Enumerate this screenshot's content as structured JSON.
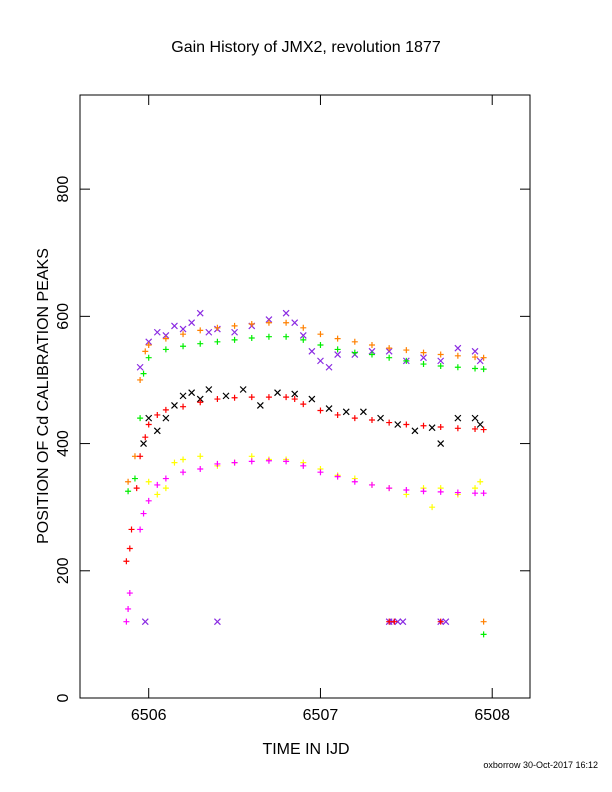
{
  "chart_data": {
    "type": "scatter",
    "title": "Gain History of JMX2, revolution 1877",
    "xlabel": "TIME IN IJD",
    "ylabel": "POSITION OF Cd CALIBRATION PEAKS",
    "footer": "oxborrow 30-Oct-2017 16:12",
    "xlim": [
      6505.6,
      6508.22
    ],
    "ylim": [
      0,
      948
    ],
    "xticks": [
      6506,
      6507,
      6508
    ],
    "yticks": [
      0,
      200,
      400,
      600,
      800
    ],
    "grid": false,
    "series": [
      {
        "color": "#ffff00",
        "marker": "+",
        "x": [
          6506.0,
          6506.05,
          6506.1,
          6506.15,
          6506.2,
          6506.3,
          6506.4,
          6506.5,
          6506.6,
          6506.7,
          6506.8,
          6506.9,
          6507.0,
          6507.1,
          6507.2,
          6507.3,
          6507.4,
          6507.5,
          6507.6,
          6507.65,
          6507.7,
          6507.8,
          6507.9,
          6507.93
        ],
        "values": [
          340,
          320,
          330,
          370,
          375,
          380,
          365,
          370,
          380,
          375,
          375,
          370,
          360,
          350,
          345,
          335,
          330,
          320,
          330,
          300,
          330,
          320,
          330,
          340
        ]
      },
      {
        "color": "#000000",
        "marker": "x",
        "x": [
          6505.97,
          6506.0,
          6506.05,
          6506.1,
          6506.15,
          6506.2,
          6506.25,
          6506.3,
          6506.35,
          6506.45,
          6506.55,
          6506.65,
          6506.75,
          6506.85,
          6506.95,
          6507.05,
          6507.15,
          6507.25,
          6507.35,
          6507.45,
          6507.55,
          6507.65,
          6507.7,
          6507.8,
          6507.9,
          6507.93
        ],
        "values": [
          400,
          440,
          420,
          440,
          460,
          475,
          480,
          470,
          485,
          475,
          485,
          460,
          480,
          478,
          470,
          455,
          450,
          450,
          440,
          430,
          420,
          425,
          400,
          440,
          440,
          430
        ]
      },
      {
        "color": "#8a2be2",
        "marker": "x",
        "x": [
          6505.95,
          6506.0,
          6506.05,
          6506.1,
          6506.15,
          6506.2,
          6506.25,
          6506.3,
          6506.35,
          6506.4,
          6506.5,
          6506.6,
          6506.7,
          6506.8,
          6506.85,
          6506.9,
          6506.95,
          6507.0,
          6507.05,
          6507.1,
          6507.2,
          6507.3,
          6507.4,
          6507.5,
          6507.6,
          6507.7,
          6507.8,
          6507.9,
          6507.93,
          6505.98,
          6506.4,
          6507.4,
          6507.42,
          6507.45,
          6507.48,
          6507.7,
          6507.73
        ],
        "values": [
          520,
          560,
          575,
          570,
          585,
          580,
          590,
          605,
          575,
          580,
          575,
          585,
          595,
          605,
          590,
          570,
          545,
          530,
          520,
          540,
          540,
          545,
          545,
          530,
          535,
          530,
          550,
          545,
          530,
          120,
          120,
          120,
          120,
          120,
          120,
          120,
          120
        ]
      },
      {
        "color": "#00ee00",
        "marker": "+",
        "x": [
          6505.88,
          6505.92,
          6505.95,
          6505.97,
          6506.0,
          6506.1,
          6506.2,
          6506.3,
          6506.4,
          6506.5,
          6506.6,
          6506.7,
          6506.8,
          6506.9,
          6507.0,
          6507.1,
          6507.2,
          6507.3,
          6507.4,
          6507.5,
          6507.6,
          6507.7,
          6507.8,
          6507.9,
          6507.95,
          6507.95
        ],
        "values": [
          325,
          345,
          440,
          510,
          535,
          548,
          553,
          557,
          560,
          563,
          566,
          568,
          568,
          563,
          555,
          548,
          543,
          540,
          535,
          530,
          525,
          522,
          520,
          518,
          517,
          100
        ]
      },
      {
        "color": "#ff8000",
        "marker": "+",
        "x": [
          6505.88,
          6505.92,
          6505.95,
          6505.98,
          6506.0,
          6506.1,
          6506.2,
          6506.3,
          6506.4,
          6506.5,
          6506.6,
          6506.7,
          6506.8,
          6506.9,
          6507.0,
          6507.1,
          6507.2,
          6507.3,
          6507.4,
          6507.5,
          6507.6,
          6507.7,
          6507.8,
          6507.9,
          6507.95,
          6507.95
        ],
        "values": [
          340,
          380,
          500,
          545,
          555,
          565,
          572,
          578,
          582,
          585,
          588,
          590,
          590,
          582,
          572,
          565,
          560,
          555,
          550,
          547,
          543,
          540,
          538,
          536,
          535,
          120
        ]
      },
      {
        "color": "#ff0000",
        "marker": "+",
        "x": [
          6505.87,
          6505.89,
          6505.9,
          6505.93,
          6505.95,
          6505.98,
          6506.0,
          6506.05,
          6506.1,
          6506.2,
          6506.3,
          6506.4,
          6506.5,
          6506.6,
          6506.7,
          6506.8,
          6506.85,
          6506.9,
          6507.0,
          6507.1,
          6507.2,
          6507.3,
          6507.4,
          6507.5,
          6507.6,
          6507.7,
          6507.8,
          6507.9,
          6507.95,
          6507.4,
          6507.43,
          6507.7
        ],
        "values": [
          215,
          235,
          265,
          330,
          380,
          410,
          430,
          445,
          453,
          458,
          465,
          470,
          472,
          473,
          473,
          473,
          470,
          462,
          452,
          445,
          440,
          437,
          433,
          430,
          428,
          426,
          424,
          423,
          422,
          120,
          120,
          120
        ]
      },
      {
        "color": "#ff00ff",
        "marker": "+",
        "x": [
          6505.87,
          6505.88,
          6505.89,
          6505.95,
          6505.97,
          6506.0,
          6506.05,
          6506.1,
          6506.2,
          6506.3,
          6506.4,
          6506.5,
          6506.6,
          6506.7,
          6506.8,
          6506.9,
          6507.0,
          6507.1,
          6507.2,
          6507.3,
          6507.4,
          6507.5,
          6507.6,
          6507.7,
          6507.8,
          6507.9,
          6507.95
        ],
        "values": [
          120,
          140,
          165,
          265,
          290,
          310,
          335,
          345,
          355,
          360,
          368,
          370,
          372,
          373,
          372,
          365,
          355,
          348,
          340,
          335,
          330,
          327,
          325,
          324,
          323,
          322,
          322
        ]
      }
    ]
  }
}
